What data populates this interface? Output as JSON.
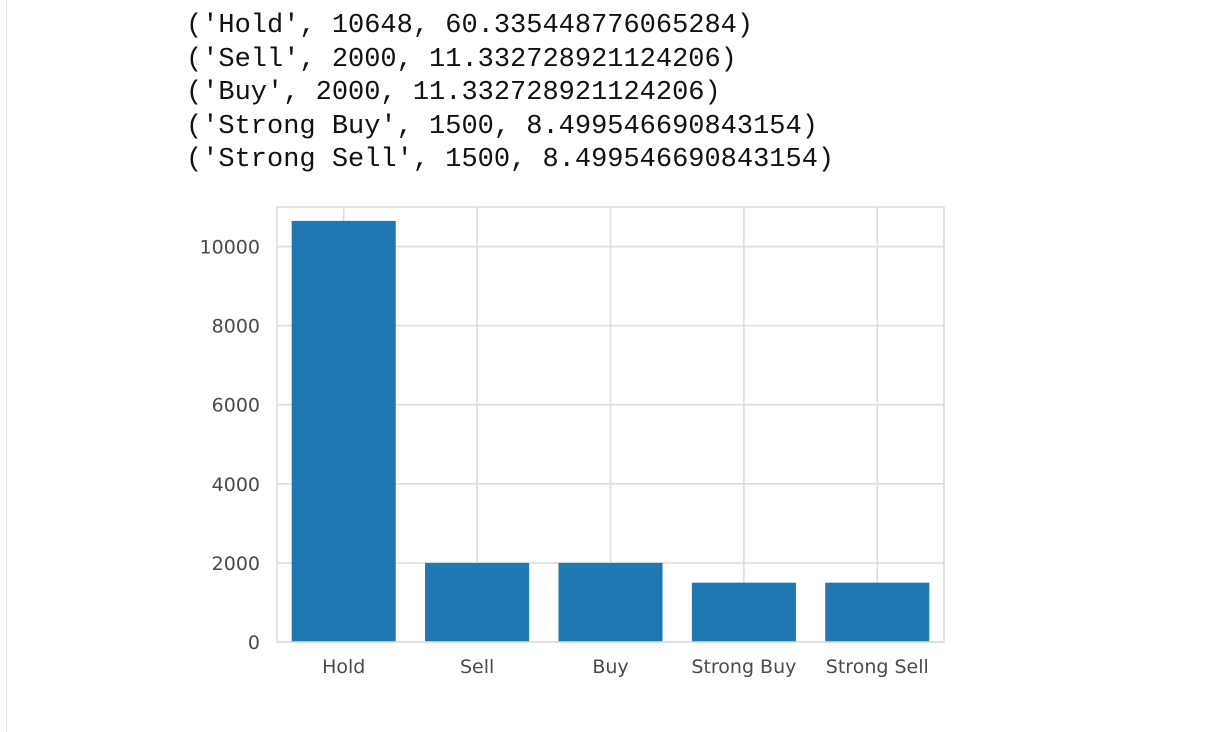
{
  "output": {
    "lines": [
      "('Hold', 10648, 60.335448776065284)",
      "('Sell', 2000, 11.332728921124206)",
      "('Buy', 2000, 11.332728921124206)",
      "('Strong Buy', 1500, 8.499546690843154)",
      "('Strong Sell', 1500, 8.499546690843154)"
    ]
  },
  "chart_data": {
    "type": "bar",
    "categories": [
      "Hold",
      "Sell",
      "Buy",
      "Strong Buy",
      "Strong Sell"
    ],
    "values": [
      10648,
      2000,
      2000,
      1500,
      1500
    ],
    "title": "",
    "xlabel": "",
    "ylabel": "",
    "ylim": [
      0,
      11000
    ],
    "yticks": [
      0,
      2000,
      4000,
      6000,
      8000,
      10000
    ],
    "grid": true,
    "bar_color": "#1f77b4",
    "grid_color": "#dddddd"
  }
}
